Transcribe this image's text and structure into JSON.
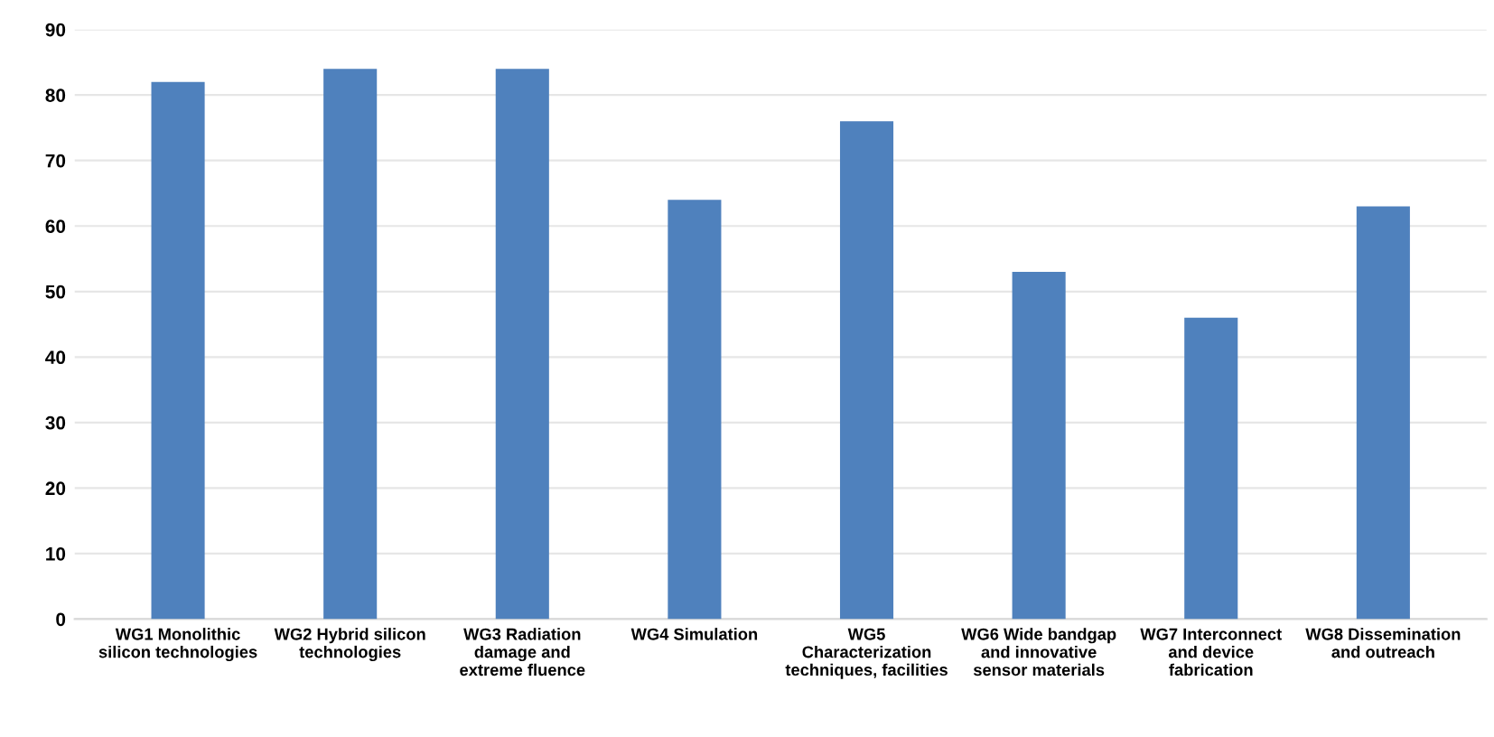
{
  "chart_data": {
    "type": "bar",
    "categories": [
      "WG1 Monolithic\nsilicon technologies",
      "WG2 Hybrid silicon\ntechnologies",
      "WG3 Radiation\ndamage and\nextreme fluence",
      "WG4 Simulation",
      "WG5\nCharacterization\ntechniques, facilities",
      "WG6 Wide bandgap\nand innovative\nsensor materials",
      "WG7 Interconnect\nand device\nfabrication",
      "WG8 Dissemination\nand outreach"
    ],
    "values": [
      82,
      84,
      84,
      64,
      76,
      53,
      46,
      63
    ],
    "color": "#4f81bd",
    "ylim": [
      0,
      90
    ],
    "yticks": [
      0,
      10,
      20,
      30,
      40,
      50,
      60,
      70,
      80,
      90
    ],
    "grid": "y"
  }
}
